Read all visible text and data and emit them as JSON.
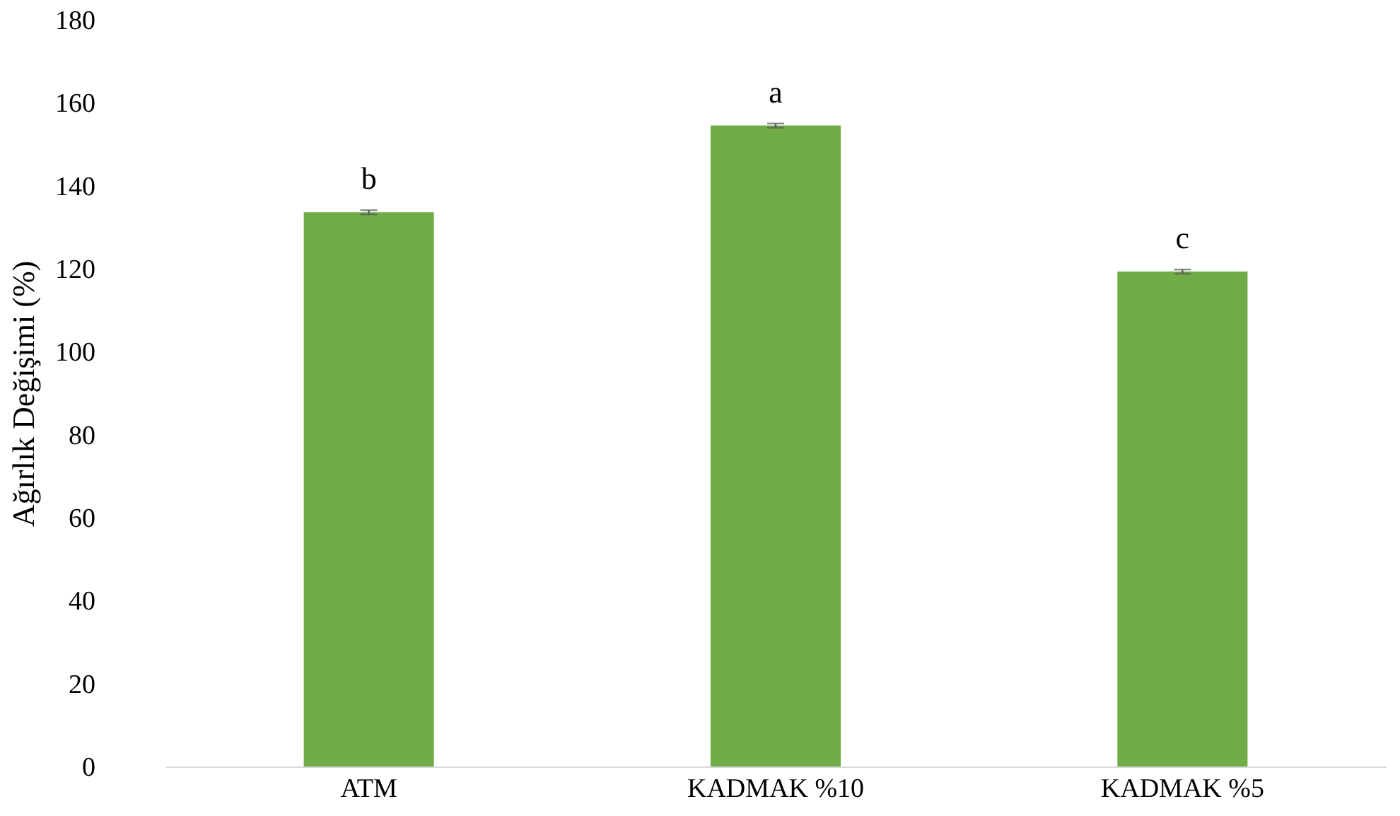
{
  "chart_data": {
    "type": "bar",
    "ylabel": "Ağırlık Değişimi (%)",
    "categories": [
      "ATM",
      "KADMAK %10",
      "KADMAK %5"
    ],
    "values": [
      133.6,
      154.5,
      119.3
    ],
    "errors": [
      0.5,
      0.5,
      0.5
    ],
    "color": "#70ad47",
    "ylim": [
      0,
      180
    ],
    "yticks": [
      0,
      20,
      40,
      60,
      80,
      100,
      120,
      140,
      160,
      180
    ],
    "grid": false,
    "annotations": [
      "b",
      "a",
      "c"
    ]
  }
}
